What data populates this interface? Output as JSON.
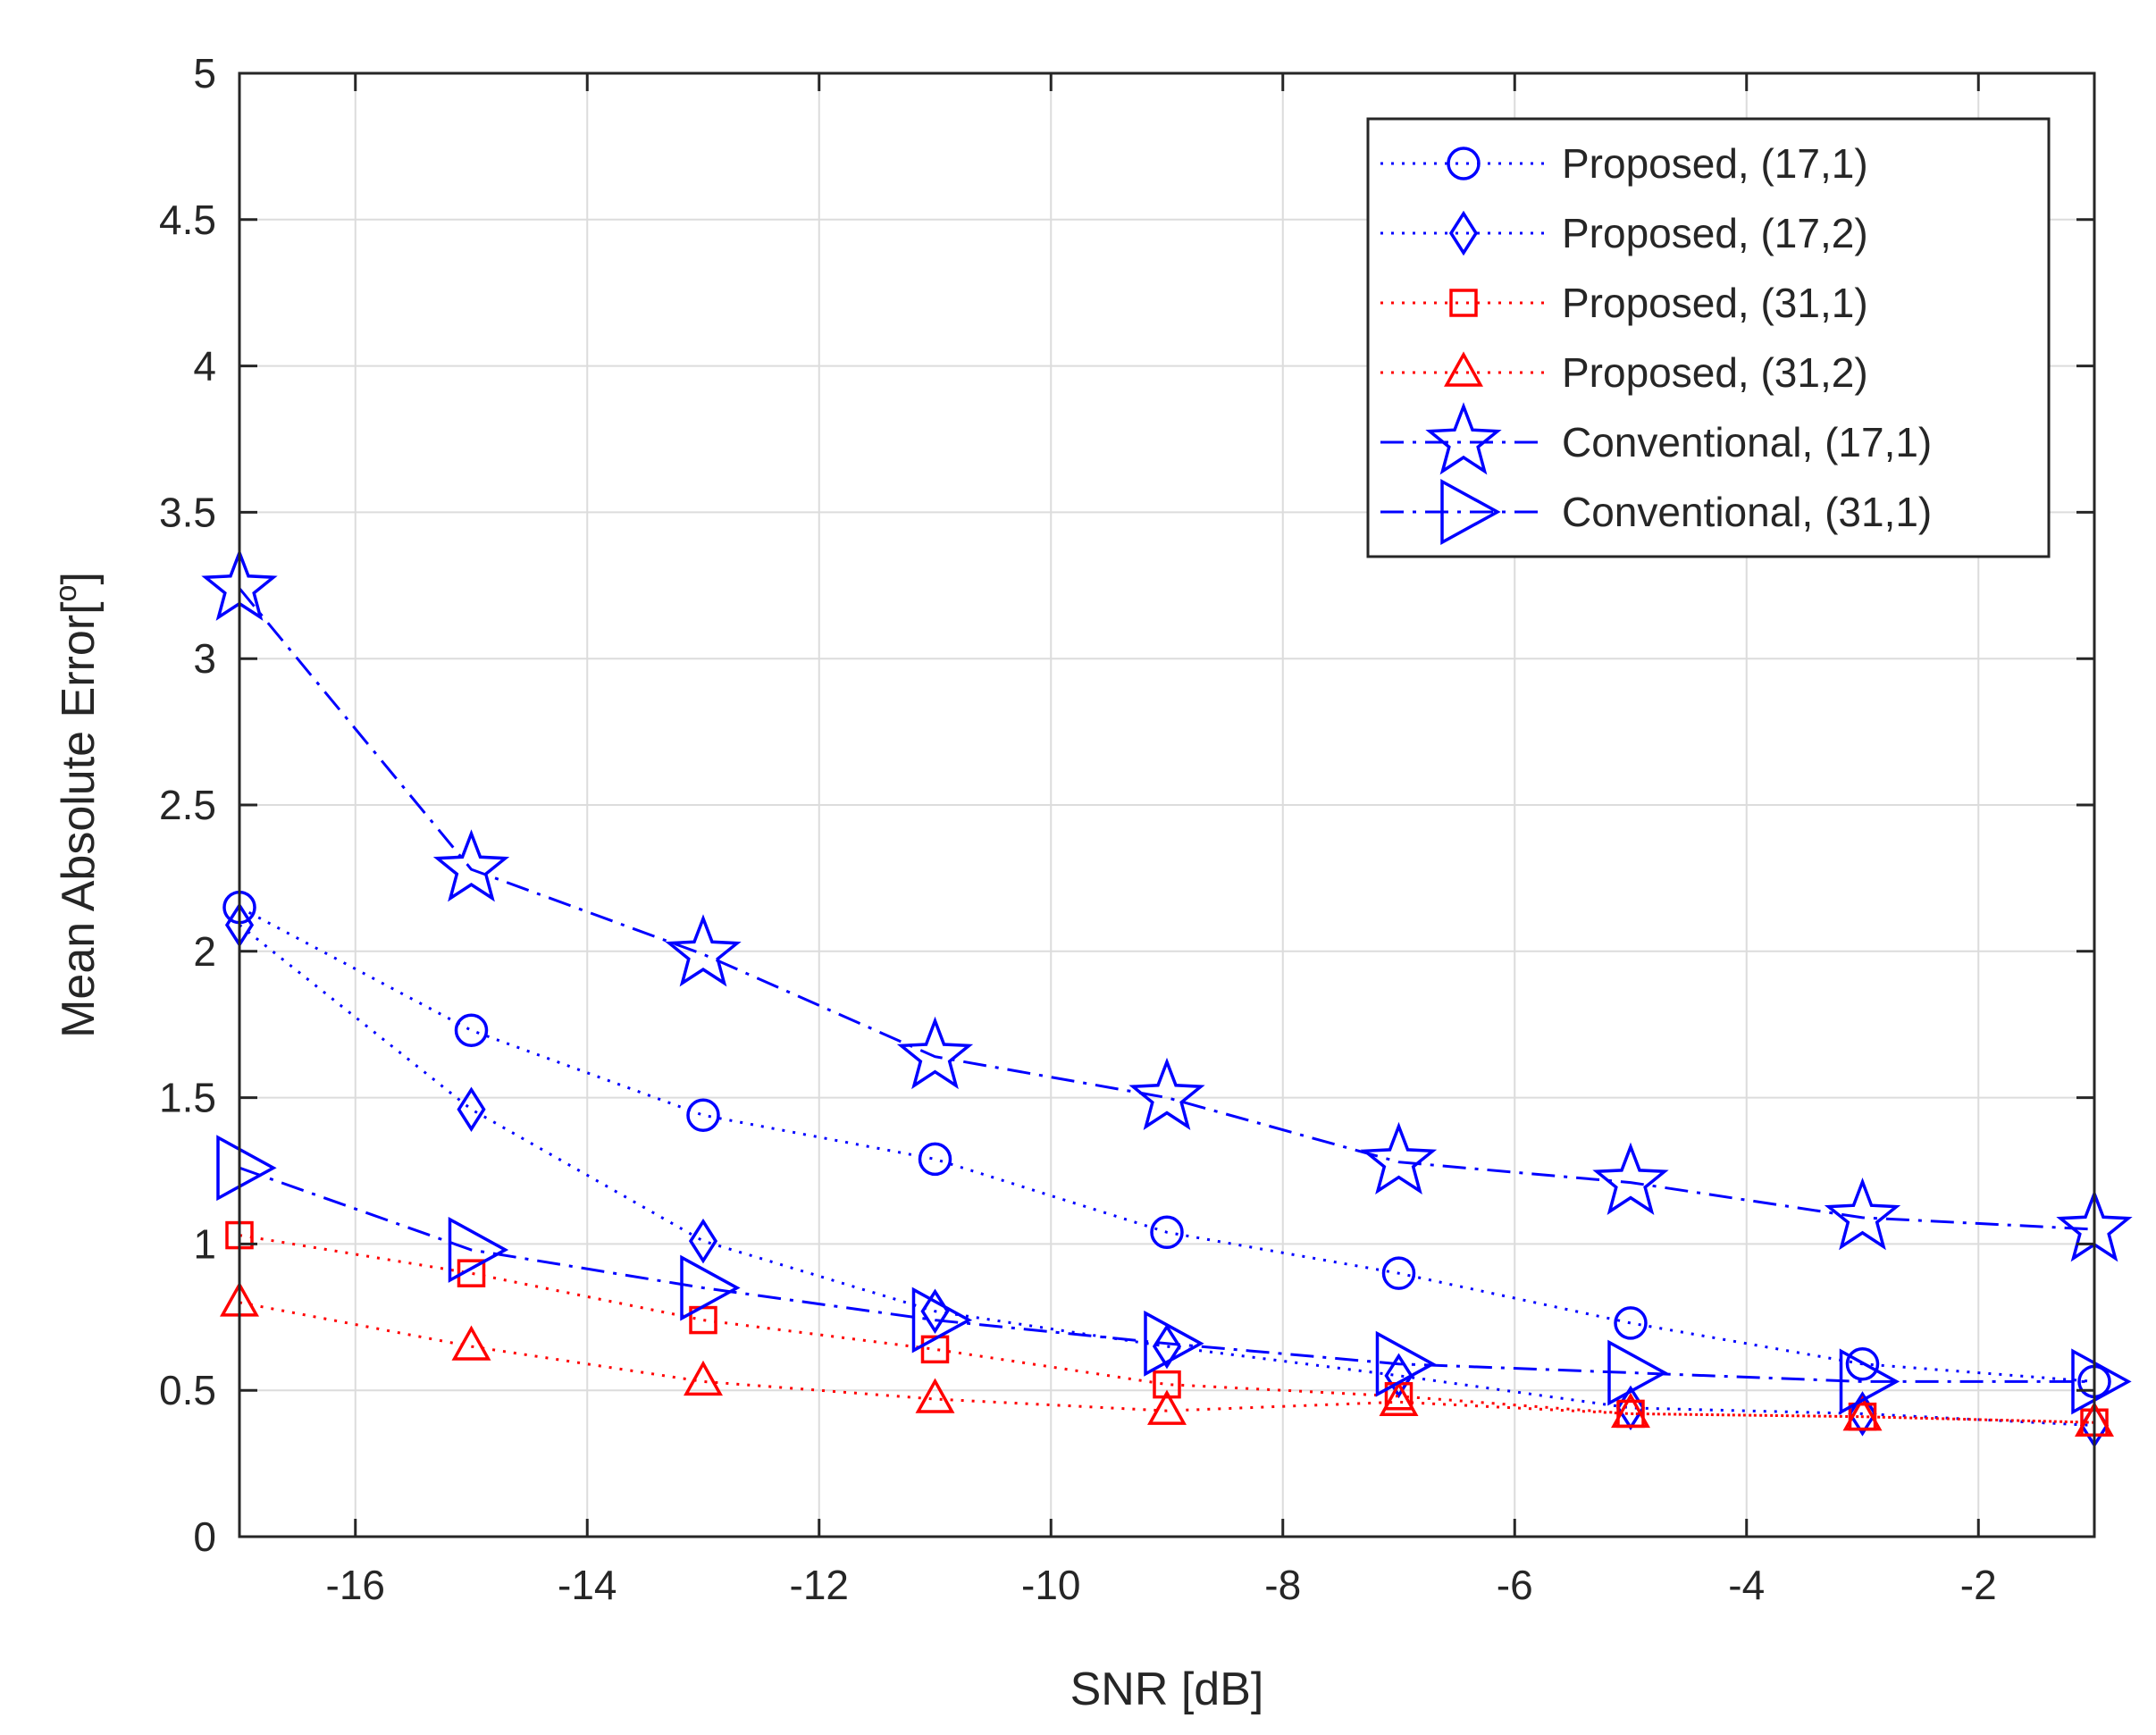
{
  "chart_data": {
    "type": "line",
    "title": "",
    "xlabel": "SNR [dB]",
    "ylabel_main": "Mean Absolute Error[",
    "ylabel_sup": "o",
    "ylabel_end": "]",
    "xlim": [
      -17,
      -1
    ],
    "ylim": [
      0,
      5
    ],
    "grid": true,
    "legend_position": "top-right",
    "x": [
      -17,
      -15,
      -13,
      -11,
      -9,
      -7,
      -5,
      -3,
      -1
    ],
    "xticks": [
      -16,
      -14,
      -12,
      -10,
      -8,
      -6,
      -4,
      -2
    ],
    "xtick_labels": [
      "-16",
      "-14",
      "-12",
      "-10",
      "-8",
      "-6",
      "-4",
      "-2"
    ],
    "yticks": [
      0,
      0.5,
      1,
      1.5,
      2,
      2.5,
      3,
      3.5,
      4,
      4.5,
      5
    ],
    "ytick_labels": [
      "0",
      "0.5",
      "1",
      "1.5",
      "2",
      "2.5",
      "3",
      "3.5",
      "4",
      "4.5",
      "5"
    ],
    "series": [
      {
        "name": "Proposed, (17,1)",
        "color": "#0000ff",
        "marker": "circle",
        "dash": "dotted",
        "values": [
          2.15,
          1.73,
          1.44,
          1.29,
          1.04,
          0.9,
          0.73,
          0.59,
          0.53
        ]
      },
      {
        "name": "Proposed, (17,2)",
        "color": "#0000ff",
        "marker": "diamond",
        "dash": "dotted",
        "values": [
          2.09,
          1.46,
          1.01,
          0.77,
          0.65,
          0.55,
          0.44,
          0.42,
          0.38
        ]
      },
      {
        "name": "Proposed, (31,1)",
        "color": "#ff0000",
        "marker": "square",
        "dash": "dotted",
        "values": [
          1.03,
          0.9,
          0.74,
          0.64,
          0.52,
          0.48,
          0.42,
          0.41,
          0.39
        ]
      },
      {
        "name": "Proposed, (31,2)",
        "color": "#ff0000",
        "marker": "triangle",
        "dash": "dotted",
        "values": [
          0.8,
          0.65,
          0.53,
          0.47,
          0.43,
          0.46,
          0.42,
          0.41,
          0.39
        ]
      },
      {
        "name": "Conventional, (17,1)",
        "color": "#0000ff",
        "marker": "star",
        "dash": "dashdot",
        "values": [
          3.24,
          2.28,
          1.99,
          1.64,
          1.5,
          1.28,
          1.21,
          1.09,
          1.05
        ]
      },
      {
        "name": "Conventional, (31,1)",
        "color": "#0000ff",
        "marker": "triangle-right",
        "dash": "dashdot",
        "values": [
          1.26,
          0.98,
          0.85,
          0.74,
          0.66,
          0.59,
          0.56,
          0.53,
          0.53
        ]
      }
    ]
  }
}
